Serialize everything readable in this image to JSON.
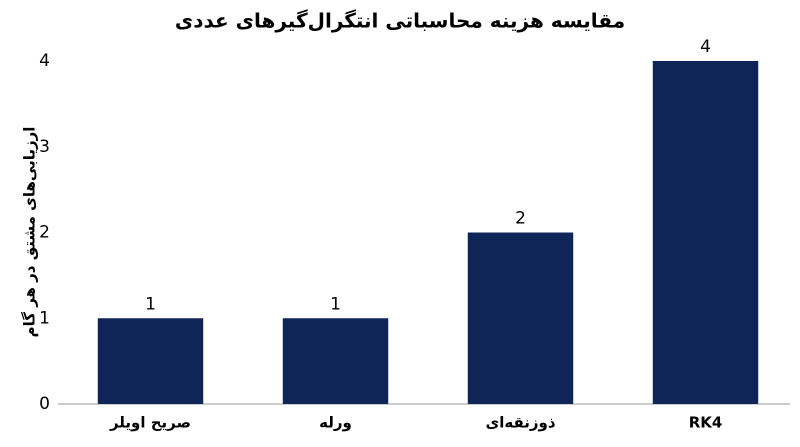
{
  "chart_data": {
    "type": "bar",
    "title": "مقایسه هزینه محاسباتی انتگرال‌گیرهای عددی",
    "y_label": "ارزیابی‌های مشتق در هر گام",
    "categories": [
      "صریح اویلر",
      "ورله",
      "ذوزنقه‌ای",
      "RK4"
    ],
    "values": [
      1,
      1,
      2,
      4
    ],
    "color": "#0f2557",
    "ylim": [
      0,
      4
    ],
    "yticks": [
      0,
      1,
      2,
      3,
      4
    ],
    "grid": false
  }
}
